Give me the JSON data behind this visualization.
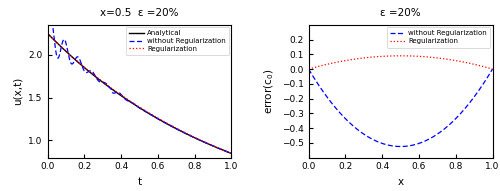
{
  "left_title": "x=0.5  ε =20%",
  "right_title": "ε =20%",
  "left_xlabel": "t",
  "left_ylabel": "u(x,t)",
  "right_xlabel": "x",
  "right_ylabel": "error(c$_0$)",
  "left_xlim": [
    0,
    1
  ],
  "left_ylim": [
    0.8,
    2.35
  ],
  "right_xlim": [
    0,
    1
  ],
  "right_ylim": [
    -0.6,
    0.3
  ],
  "analytical_color": "#000000",
  "no_reg_color": "#0000FF",
  "reg_color": "#FF0000",
  "legend_left": [
    "Analytical",
    "without Regularization",
    "Regularization"
  ],
  "legend_right": [
    "without Regularization",
    "Regularization"
  ],
  "left_yticks": [
    1.0,
    1.5,
    2.0
  ],
  "right_yticks": [
    -0.5,
    -0.4,
    -0.3,
    -0.2,
    -0.1,
    0.0,
    0.1,
    0.2
  ],
  "xticks": [
    0.0,
    0.2,
    0.4,
    0.6,
    0.8,
    1.0
  ]
}
